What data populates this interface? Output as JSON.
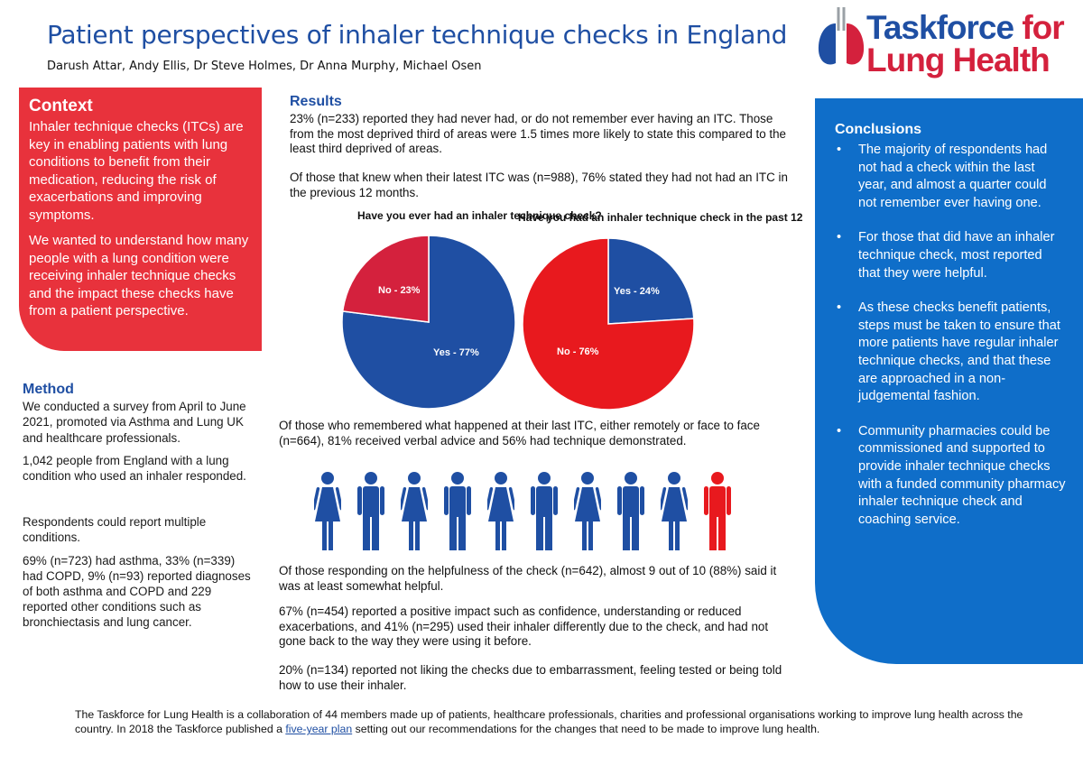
{
  "header": {
    "title": "Patient perspectives of inhaler technique checks in England",
    "authors": "Darush Attar, Andy Ellis, Dr Steve Holmes, Dr Anna Murphy, Michael Osen"
  },
  "logo": {
    "line1_a": "Taskforce ",
    "line1_b": "for",
    "line2": "Lung Health"
  },
  "context": {
    "heading": "Context",
    "p1": "Inhaler technique checks (ITCs) are key in enabling patients with lung conditions to benefit from their medication, reducing the risk of exacerbations and improving symptoms.",
    "p2": "We wanted to understand how many people with a lung condition were receiving inhaler technique checks and the impact these checks have from a patient perspective."
  },
  "method": {
    "heading": "Method",
    "p1": "We conducted a survey from April to June 2021, promoted via Asthma and Lung UK and healthcare professionals.",
    "p2": "1,042 people from England with a lung condition who used an inhaler responded.",
    "p3": "Respondents could report multiple conditions.",
    "p4": "69% (n=723) had asthma, 33% (n=339) had COPD, 9% (n=93) reported diagnoses of both asthma and COPD and 229 reported other conditions such as bronchiectasis and lung cancer."
  },
  "results": {
    "heading": "Results",
    "p1": "23% (n=233) reported they had never had, or do not remember ever having an ITC. Those from the most deprived third of areas were 1.5 times more likely to state this compared to the least third deprived of areas.",
    "p2": "Of those that knew when their latest ITC was (n=988), 76% stated they had not had an ITC in the previous 12 months.",
    "p3": "Of those who remembered what happened at their last ITC, either remotely or face to face (n=664), 81% received verbal advice and 56% had technique demonstrated.",
    "p4": "Of those responding on the helpfulness of the check (n=642), almost 9 out of 10 (88%) said it was at least somewhat helpful.",
    "p5": "67% (n=454) reported a positive impact such as confidence, understanding or reduced exacerbations, and 41% (n=295) used their inhaler differently due to the check, and had not gone back to the way they were using it before.",
    "p6": "20% (n=134) reported not liking the checks due to embarrassment, feeling tested or being told how to use their inhaler."
  },
  "chart_data": [
    {
      "type": "pie",
      "title": "Have you ever had an inhaler technique check?",
      "categories": [
        "Yes",
        "No"
      ],
      "values": [
        77,
        23
      ],
      "labels": [
        "Yes - 77%",
        "No - 23%"
      ],
      "colors": [
        "#1f4fa3",
        "#d4213d"
      ]
    },
    {
      "type": "pie",
      "title": "Have you had an inhaler technique check in the past 12",
      "categories": [
        "Yes",
        "No"
      ],
      "values": [
        24,
        76
      ],
      "labels": [
        "Yes - 24%",
        "No - 76%"
      ],
      "colors": [
        "#1f4fa3",
        "#e8191e"
      ]
    }
  ],
  "pictogram": {
    "total": 10,
    "highlighted": 1,
    "pattern": [
      "female",
      "male",
      "female",
      "male",
      "female",
      "male",
      "female",
      "male",
      "female",
      "male"
    ],
    "base_color": "#1f4fa3",
    "highlight_color": "#e8191e"
  },
  "conclusions": {
    "heading": "Conclusions",
    "bullet": "•",
    "items": [
      "The majority of respondents had not had a check within the last year, and almost a quarter could not remember ever having one.",
      "For those that did have an inhaler technique check, most reported that they were helpful.",
      "As these checks benefit patients, steps must be taken to ensure that more patients have regular inhaler technique checks, and that these are approached in a non-judgemental fashion.",
      "Community pharmacies could be commissioned and supported to provide inhaler technique checks with a funded community pharmacy inhaler technique check and coaching service."
    ]
  },
  "footer": {
    "text_before": "The Taskforce for Lung Health is a collaboration of 44 members made up of patients, healthcare professionals, charities and professional organisations working to improve lung health across the country. In 2018 the Taskforce published a ",
    "link": "five-year plan",
    "text_after": " setting out our recommendations for the changes that need to be made to improve lung health."
  }
}
